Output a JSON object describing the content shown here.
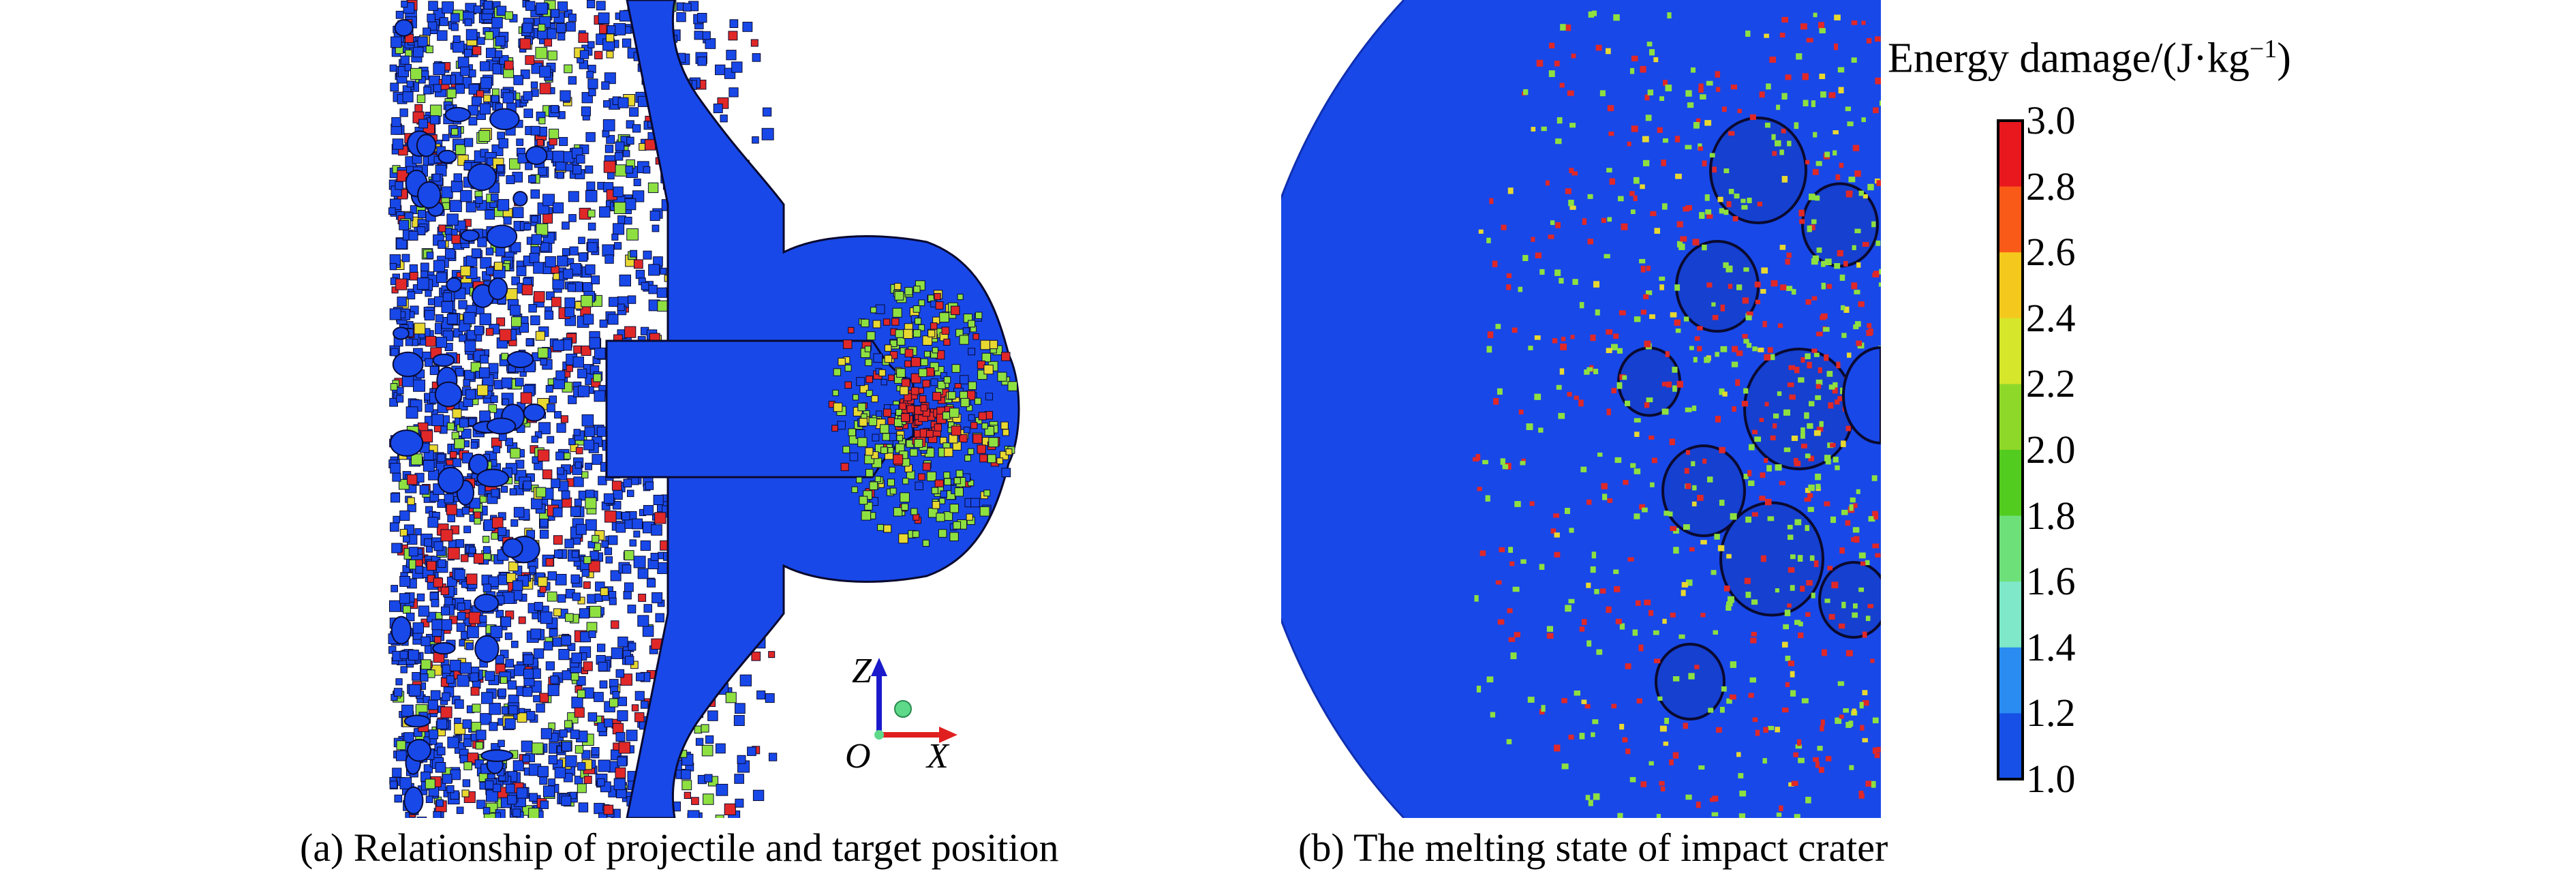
{
  "panel_a": {
    "caption": "(a) Relationship of projectile and target position",
    "axes": {
      "z": "Z",
      "origin": "O",
      "x": "X"
    },
    "colors": {
      "z_axis": "#1a1acc",
      "x_axis": "#e02020",
      "marker": "#5ed98a"
    }
  },
  "panel_b": {
    "caption": "(b) The melting state of impact crater"
  },
  "colorbar": {
    "title_main": "Energy damage/(J·kg",
    "title_sup": "−1",
    "title_end": ")",
    "ticks": [
      "3.0",
      "2.8",
      "2.6",
      "2.4",
      "2.2",
      "2.0",
      "1.8",
      "1.6",
      "1.4",
      "1.2",
      "1.0"
    ],
    "bands": [
      "#e8181e",
      "#fa5a18",
      "#f5c81e",
      "#d6e62a",
      "#8ed82a",
      "#52cc1e",
      "#6ee07a",
      "#7ee8c8",
      "#2a8cf0",
      "#1650e6"
    ]
  },
  "colors": {
    "material_blue": "#1848e8",
    "particle_red": "#e02828",
    "particle_green": "#8ee040",
    "particle_yellow": "#e8d830",
    "outline": "#0a0a30"
  }
}
